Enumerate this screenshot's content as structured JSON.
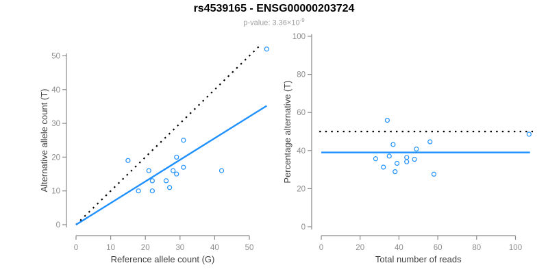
{
  "header": {
    "title": "rs4539165 - ENSG00000203724",
    "p_value_text": "p-value: 3.36×10",
    "p_value_exponent": "-9"
  },
  "colors": {
    "point_blue": "#1E90FF",
    "fit_line_blue": "#1E90FF",
    "reference_line_black": "#000000",
    "axis_line_grey": "#8a8a8a",
    "tick_label_grey": "#8c8c8c",
    "axis_title_grey": "#404040",
    "title_black": "#000000",
    "subtitle_grey": "#9e9e9e",
    "background": "#ffffff"
  },
  "chart_data": [
    {
      "type": "scatter",
      "name": "allele-counts-panel",
      "xlabel": "Reference allele count (G)",
      "ylabel": "Alternative allele count (T)",
      "xlim": [
        0,
        55
      ],
      "ylim": [
        0,
        53
      ],
      "xticks": [
        0,
        10,
        20,
        30,
        40,
        50
      ],
      "yticks": [
        0,
        10,
        20,
        30,
        40,
        50
      ],
      "grid": false,
      "legend": "none",
      "points": [
        [
          15,
          19
        ],
        [
          18,
          10
        ],
        [
          21,
          16
        ],
        [
          22,
          10
        ],
        [
          22,
          13
        ],
        [
          26,
          13
        ],
        [
          27,
          11
        ],
        [
          28,
          16
        ],
        [
          29,
          15
        ],
        [
          29,
          20
        ],
        [
          31,
          17
        ],
        [
          31,
          25
        ],
        [
          42,
          16
        ],
        [
          55,
          52
        ]
      ],
      "lines": [
        {
          "style": "dotted",
          "color": "black",
          "from": [
            0,
            0
          ],
          "to": [
            53.5,
            53.5
          ]
        },
        {
          "style": "solid",
          "color": "blue",
          "from": [
            0,
            0
          ],
          "to": [
            55,
            35.2
          ]
        }
      ]
    },
    {
      "type": "scatter",
      "name": "percentage-panel",
      "xlabel": "Total number of reads",
      "ylabel": "Percentage alternative (T)",
      "xlim": [
        0,
        109
      ],
      "ylim": [
        0,
        100
      ],
      "xticks": [
        0,
        20,
        40,
        60,
        80,
        100
      ],
      "yticks": [
        0,
        20,
        40,
        60,
        80,
        100
      ],
      "grid": false,
      "legend": "none",
      "points": [
        [
          28,
          35.7
        ],
        [
          32,
          31.3
        ],
        [
          34,
          55.9
        ],
        [
          35,
          37.1
        ],
        [
          37,
          43.2
        ],
        [
          38,
          28.9
        ],
        [
          39,
          33.3
        ],
        [
          44,
          34.1
        ],
        [
          44,
          36.4
        ],
        [
          48,
          35.4
        ],
        [
          49,
          40.8
        ],
        [
          56,
          44.6
        ],
        [
          58,
          27.6
        ],
        [
          107,
          48.6
        ]
      ],
      "lines": [
        {
          "style": "dotted",
          "color": "black",
          "from": [
            -1,
            50
          ],
          "to": [
            109,
            50
          ]
        },
        {
          "style": "solid",
          "color": "blue",
          "from": [
            0,
            39
          ],
          "to": [
            107.5,
            39
          ]
        }
      ]
    }
  ]
}
